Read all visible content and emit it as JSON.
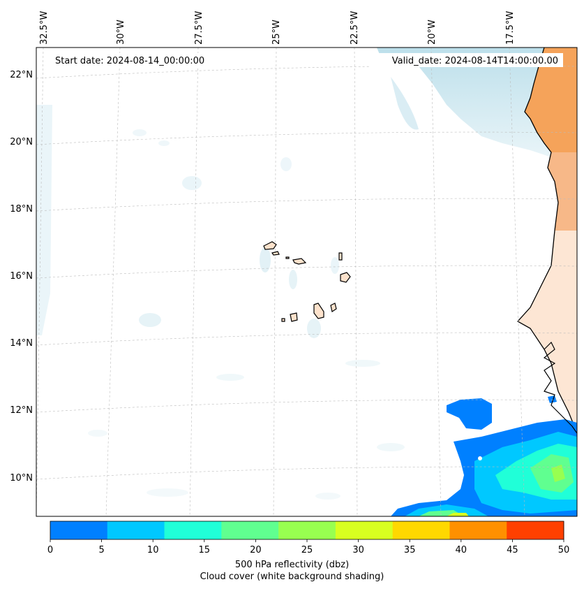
{
  "map": {
    "start_date": "Start date: 2024-08-14_00:00:00",
    "valid_date": "Valid_date: 2024-08-14T14:00:00.00",
    "lon_ticks": [
      "32.5°W",
      "30°W",
      "27.5°W",
      "25°W",
      "22.5°W",
      "20°W",
      "17.5°W"
    ],
    "lat_ticks": [
      "22°N",
      "20°N",
      "18°N",
      "16°N",
      "14°N",
      "12°N",
      "10°N"
    ]
  },
  "colorbar": {
    "ticks": [
      "0",
      "5",
      "10",
      "15",
      "20",
      "25",
      "30",
      "35",
      "40",
      "45",
      "50"
    ],
    "colors": [
      "#0080ff",
      "#00c8ff",
      "#20ffd8",
      "#60ff90",
      "#98ff50",
      "#d8ff20",
      "#ffd800",
      "#ff9000",
      "#ff4000"
    ],
    "label": "500 hPa reflectivity (dbz)",
    "sublabel": "Cloud cover (white background shading)"
  },
  "colors": {
    "land_desert": "#f5a35a",
    "land_light": "#fde2cc",
    "cloud": "#add8e6",
    "islands": "#fde2cc"
  }
}
